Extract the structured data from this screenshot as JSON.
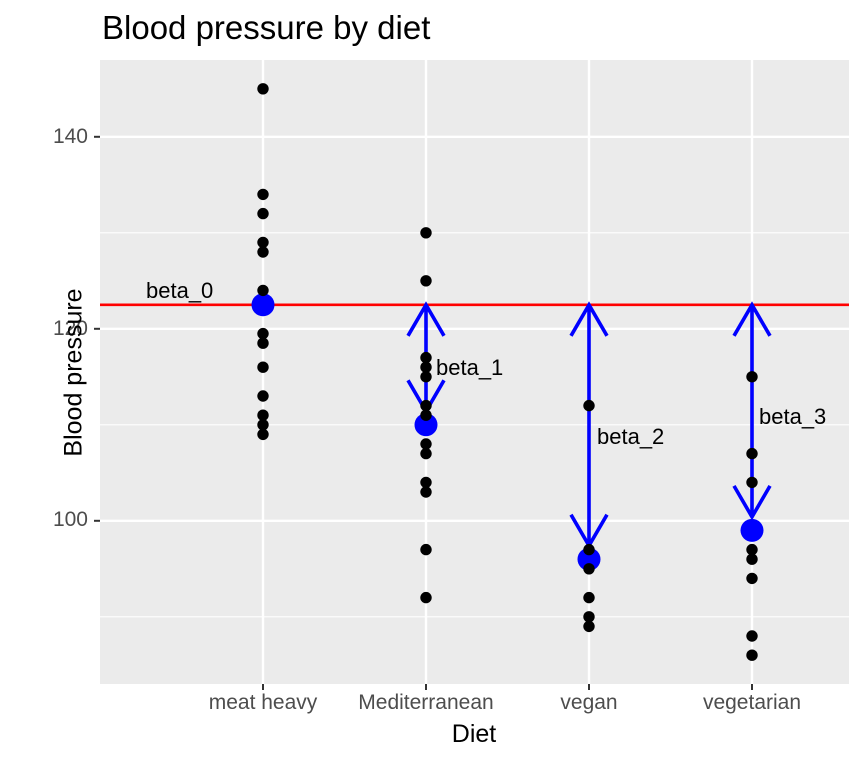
{
  "chart_data": {
    "type": "scatter",
    "title": "Blood pressure by diet",
    "xlabel": "Diet",
    "ylabel": "Blood pressure",
    "categories": [
      "meat heavy",
      "Mediterranean",
      "vegan",
      "vegetarian"
    ],
    "series": [
      {
        "name": "meat heavy",
        "values": [
          145,
          134,
          132,
          129,
          128,
          124,
          119.5,
          118.5,
          116,
          113,
          111,
          110,
          109
        ],
        "mean": 122.5
      },
      {
        "name": "Mediterranean",
        "values": [
          130,
          125,
          117,
          116,
          115,
          112,
          111,
          108,
          107,
          104,
          103,
          97,
          92
        ],
        "mean": 110
      },
      {
        "name": "vegan",
        "values": [
          112,
          97,
          95,
          92,
          90,
          89
        ],
        "mean": 96
      },
      {
        "name": "vegetarian",
        "values": [
          115,
          107,
          104,
          97,
          96,
          94,
          88,
          86
        ],
        "mean": 99
      }
    ],
    "baseline": {
      "value": 122.5,
      "label": "beta_0",
      "color": "#FF0000"
    },
    "arrows": [
      {
        "category": "Mediterranean",
        "from": 122.5,
        "to": 110,
        "label": "beta_1"
      },
      {
        "category": "vegan",
        "from": 122.5,
        "to": 96,
        "label": "beta_2"
      },
      {
        "category": "vegetarian",
        "from": 122.5,
        "to": 99,
        "label": "beta_3"
      }
    ],
    "ylim": [
      83,
      148
    ],
    "yticks": [
      100,
      120,
      140
    ],
    "yticks_minor": [
      90,
      110,
      130
    ],
    "grid": true,
    "legend": false,
    "point_color": "#000000",
    "mean_color": "#0000FF",
    "panel_bg": "#EBEBEB",
    "grid_color": "#FFFFFF",
    "axis_tick_color": "#333333",
    "tick_label_color": "#4D4D4D"
  }
}
